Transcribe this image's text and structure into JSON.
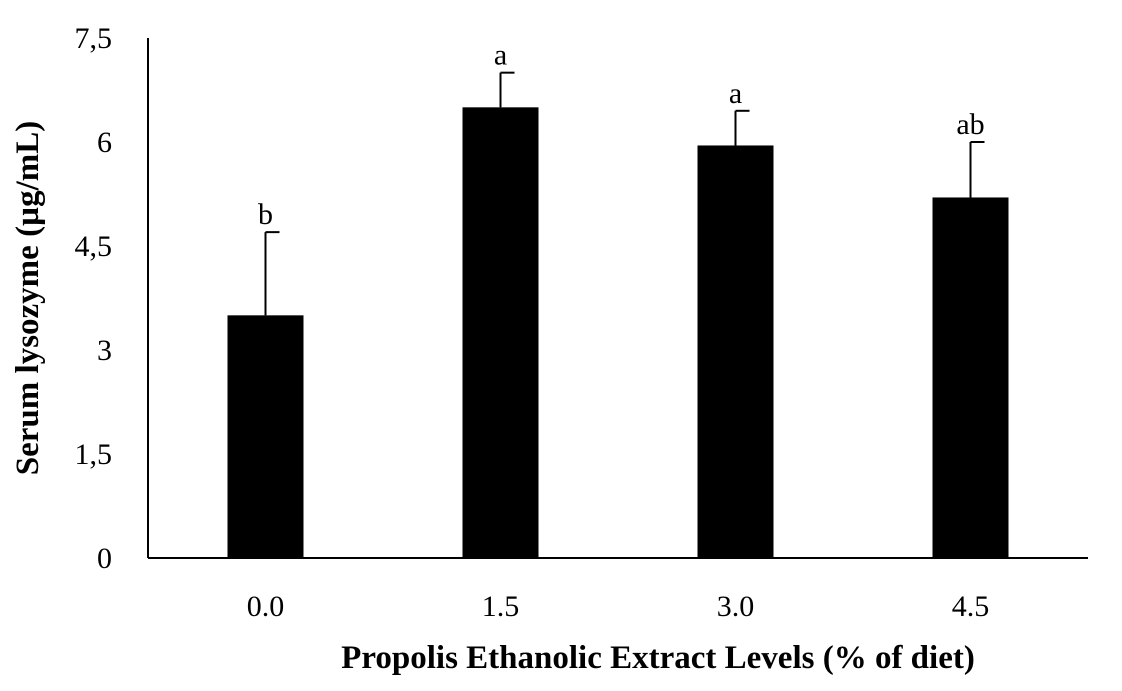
{
  "chart_data": {
    "type": "bar",
    "title": "",
    "xlabel": "Propolis Ethanolic Extract Levels (% of diet)",
    "ylabel": "Serum lysozyme (µg/mL)",
    "categories": [
      "0.0",
      "1.5",
      "3.0",
      "4.5"
    ],
    "values": [
      3.5,
      6.5,
      5.95,
      5.2
    ],
    "error_plus": [
      1.2,
      0.5,
      0.5,
      0.8
    ],
    "significance_labels": [
      "b",
      "a",
      "a",
      "ab"
    ],
    "ylim": [
      0,
      7.5
    ],
    "yticks": [
      0,
      1.5,
      3,
      4.5,
      6,
      7.5
    ],
    "ytick_labels": [
      "0",
      "1,5",
      "3",
      "4,5",
      "6",
      "7,5"
    ],
    "bar_color": "#000000",
    "grid": false,
    "legend": "none"
  }
}
